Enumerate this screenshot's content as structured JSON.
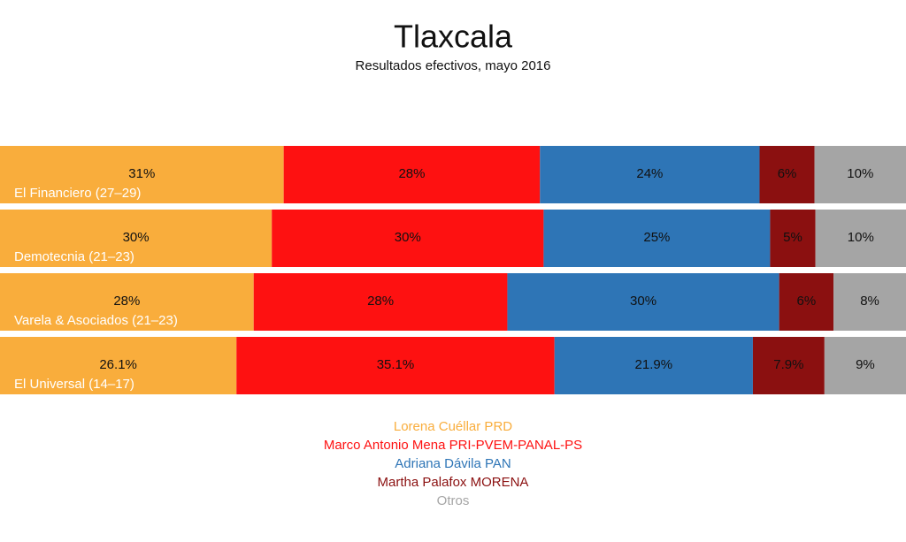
{
  "chart_data": {
    "type": "stacked-bar-100",
    "title": "Tlaxcala",
    "subtitle": "Resultados efectivos, mayo 2016",
    "categories": [
      "El Financiero (27–29)",
      "Demotecnia (21–23)",
      "Varela & Asociados (21–23)",
      "El Universal (14–17)"
    ],
    "series": [
      {
        "name": "Lorena Cuéllar PRD",
        "color": "#f9ad3c",
        "values": [
          31,
          30,
          28,
          26.1
        ],
        "value_labels": [
          "31%",
          "30%",
          "28%",
          "26.1%"
        ]
      },
      {
        "name": "Marco Antonio Mena PRI-PVEM-PANAL-PS",
        "color": "#fe1111",
        "values": [
          28,
          30,
          28,
          35.1
        ],
        "value_labels": [
          "28%",
          "30%",
          "28%",
          "35.1%"
        ]
      },
      {
        "name": "Adriana Dávila PAN",
        "color": "#2e75b6",
        "values": [
          24,
          25,
          30,
          21.9
        ],
        "value_labels": [
          "24%",
          "25%",
          "30%",
          "21.9%"
        ]
      },
      {
        "name": "Martha Palafox MORENA",
        "color": "#8b1010",
        "values": [
          6,
          5,
          6,
          7.9
        ],
        "value_labels": [
          "6%",
          "5%",
          "6%",
          "7.9%"
        ]
      },
      {
        "name": "Otros",
        "color": "#a5a5a5",
        "values": [
          10,
          10,
          8,
          9
        ],
        "value_labels": [
          "10%",
          "10%",
          "8%",
          "9%"
        ]
      }
    ]
  }
}
